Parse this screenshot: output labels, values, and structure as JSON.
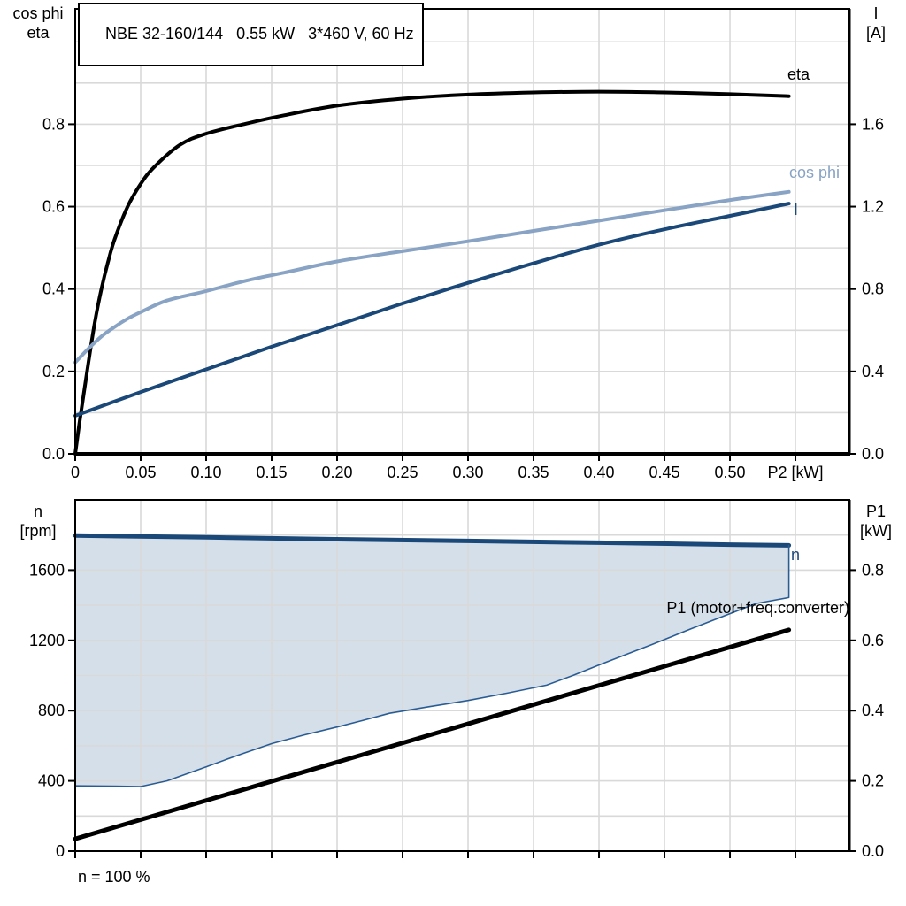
{
  "title": "NBE 32-160/144   0.55 kW   3*460 V, 60 Hz",
  "footer_note": "n = 100 %",
  "colors": {
    "black_curve": "#000000",
    "light_blue_curve": "#88A3C4",
    "dark_blue_curve": "#1A4878",
    "region_fill": "#D5DFEA",
    "gridline": "#D9D9D9",
    "frame": "#000000"
  },
  "chart_data": [
    {
      "id": "top",
      "type": "line",
      "title": "Motor curves: eta, cos phi and I versus shaft power P2",
      "x_axis": {
        "label": "P2 [kW]",
        "label_at": 0.55,
        "min": 0,
        "max": 0.5912,
        "grid_step": 0.05,
        "tick_values": [
          0,
          0.05,
          0.1,
          0.15,
          0.2,
          0.25,
          0.3,
          0.35,
          0.4,
          0.45,
          0.5,
          0.55
        ],
        "tick_labels": [
          "0",
          "0.05",
          "0.10",
          "0.15",
          "0.20",
          "0.25",
          "0.30",
          "0.35",
          "0.40",
          "0.45",
          "0.50",
          ""
        ]
      },
      "y_left": {
        "label_lines": [
          "cos phi",
          "eta"
        ],
        "min": 0,
        "max": 1.08,
        "grid_step": 0.1,
        "ticks": [
          {
            "v": 0,
            "t": "0.0"
          },
          {
            "v": 0.2,
            "t": "0.2"
          },
          {
            "v": 0.4,
            "t": "0.4"
          },
          {
            "v": 0.6,
            "t": "0.6"
          },
          {
            "v": 0.8,
            "t": "0.8"
          }
        ]
      },
      "y_right": {
        "label_lines": [
          "I",
          "[A]"
        ],
        "min": 0,
        "max": 2.16,
        "ticks": [
          {
            "v": 0,
            "t": "0.0"
          },
          {
            "v": 0.4,
            "t": "0.4"
          },
          {
            "v": 0.8,
            "t": "0.8"
          },
          {
            "v": 1.2,
            "t": "1.2"
          },
          {
            "v": 1.6,
            "t": "1.6"
          }
        ]
      },
      "series": [
        {
          "name": "eta",
          "label": "eta",
          "axis": "left",
          "color": "#000000",
          "width": 4,
          "smooth": true,
          "points": [
            [
              0,
              0
            ],
            [
              0.003,
              0.07
            ],
            [
              0.006,
              0.135
            ],
            [
              0.01,
              0.22
            ],
            [
              0.015,
              0.32
            ],
            [
              0.02,
              0.4
            ],
            [
              0.025,
              0.465
            ],
            [
              0.03,
              0.52
            ],
            [
              0.04,
              0.6
            ],
            [
              0.05,
              0.655
            ],
            [
              0.06,
              0.695
            ],
            [
              0.08,
              0.75
            ],
            [
              0.1,
              0.777
            ],
            [
              0.13,
              0.801
            ],
            [
              0.16,
              0.822
            ],
            [
              0.2,
              0.845
            ],
            [
              0.25,
              0.862
            ],
            [
              0.3,
              0.872
            ],
            [
              0.35,
              0.877
            ],
            [
              0.4,
              0.879
            ],
            [
              0.45,
              0.877
            ],
            [
              0.5,
              0.873
            ],
            [
              0.545,
              0.868
            ]
          ]
        },
        {
          "name": "cos_phi",
          "label": "cos phi",
          "axis": "left",
          "color": "#88A3C4",
          "width": 4,
          "smooth": true,
          "points": [
            [
              0,
              0.222
            ],
            [
              0.01,
              0.255
            ],
            [
              0.02,
              0.285
            ],
            [
              0.03,
              0.308
            ],
            [
              0.04,
              0.328
            ],
            [
              0.05,
              0.344
            ],
            [
              0.07,
              0.372
            ],
            [
              0.1,
              0.395
            ],
            [
              0.13,
              0.42
            ],
            [
              0.16,
              0.44
            ],
            [
              0.2,
              0.467
            ],
            [
              0.25,
              0.492
            ],
            [
              0.3,
              0.516
            ],
            [
              0.35,
              0.541
            ],
            [
              0.4,
              0.566
            ],
            [
              0.45,
              0.591
            ],
            [
              0.5,
              0.616
            ],
            [
              0.545,
              0.636
            ]
          ]
        },
        {
          "name": "I",
          "label": "I",
          "axis": "right",
          "color": "#1A4878",
          "width": 4,
          "smooth": true,
          "points": [
            [
              0,
              0.185
            ],
            [
              0.05,
              0.3
            ],
            [
              0.1,
              0.41
            ],
            [
              0.15,
              0.52
            ],
            [
              0.2,
              0.625
            ],
            [
              0.25,
              0.73
            ],
            [
              0.3,
              0.83
            ],
            [
              0.35,
              0.925
            ],
            [
              0.4,
              1.015
            ],
            [
              0.45,
              1.09
            ],
            [
              0.5,
              1.155
            ],
            [
              0.545,
              1.215
            ]
          ]
        }
      ]
    },
    {
      "id": "bottom",
      "type": "line",
      "title": "Speed n and input power P1 versus shaft power P2, n = 100 %",
      "x_axis": {
        "label": "",
        "label_at": null,
        "min": 0,
        "max": 0.5912,
        "grid_step": 0.05,
        "tick_values": [
          0,
          0.05,
          0.1,
          0.15,
          0.2,
          0.25,
          0.3,
          0.35,
          0.4,
          0.45,
          0.5,
          0.55
        ],
        "tick_labels": []
      },
      "y_left": {
        "label_lines": [
          "n",
          "[rpm]"
        ],
        "min": 0,
        "max": 2000,
        "grid_step": 200,
        "ticks": [
          {
            "v": 0,
            "t": "0"
          },
          {
            "v": 400,
            "t": "400"
          },
          {
            "v": 800,
            "t": "800"
          },
          {
            "v": 1200,
            "t": "1200"
          },
          {
            "v": 1600,
            "t": "1600"
          }
        ]
      },
      "y_right": {
        "label_lines": [
          "P1",
          "[kW]"
        ],
        "min": 0,
        "max": 1.0,
        "ticks": [
          {
            "v": 0,
            "t": "0.0"
          },
          {
            "v": 0.2,
            "t": "0.2"
          },
          {
            "v": 0.4,
            "t": "0.4"
          },
          {
            "v": 0.6,
            "t": "0.6"
          },
          {
            "v": 0.8,
            "t": "0.8"
          }
        ]
      },
      "fill_between": {
        "upper": "n",
        "lower": "n_range_lower",
        "color": "#D5DFEA"
      },
      "series": [
        {
          "name": "n",
          "label": "n",
          "axis": "left",
          "color": "#1A4878",
          "width": 5,
          "smooth": false,
          "points": [
            [
              0,
              1797
            ],
            [
              0.1,
              1787
            ],
            [
              0.2,
              1776
            ],
            [
              0.3,
              1766
            ],
            [
              0.4,
              1756
            ],
            [
              0.5,
              1745
            ],
            [
              0.545,
              1741
            ]
          ]
        },
        {
          "name": "n_range_lower",
          "label": "",
          "axis": "left",
          "color": "#2A5C94",
          "width": 1.6,
          "smooth": false,
          "points": [
            [
              0,
              372
            ],
            [
              0.03,
              370
            ],
            [
              0.05,
              368
            ],
            [
              0.07,
              400
            ],
            [
              0.1,
              480
            ],
            [
              0.125,
              548
            ],
            [
              0.15,
              612
            ],
            [
              0.175,
              662
            ],
            [
              0.2,
              707
            ],
            [
              0.22,
              745
            ],
            [
              0.24,
              785
            ],
            [
              0.27,
              822
            ],
            [
              0.3,
              858
            ],
            [
              0.33,
              900
            ],
            [
              0.36,
              945
            ],
            [
              0.38,
              1000
            ],
            [
              0.4,
              1060
            ],
            [
              0.42,
              1118
            ],
            [
              0.44,
              1175
            ],
            [
              0.47,
              1265
            ],
            [
              0.5,
              1352
            ],
            [
              0.52,
              1410
            ],
            [
              0.545,
              1444
            ],
            [
              0.545,
              1741
            ]
          ]
        },
        {
          "name": "P1",
          "label": "P1 (motor+freq.converter)",
          "axis": "right",
          "color": "#000000",
          "width": 5,
          "smooth": false,
          "points": [
            [
              0,
              0.035
            ],
            [
              0.545,
              0.63
            ]
          ]
        }
      ]
    }
  ]
}
